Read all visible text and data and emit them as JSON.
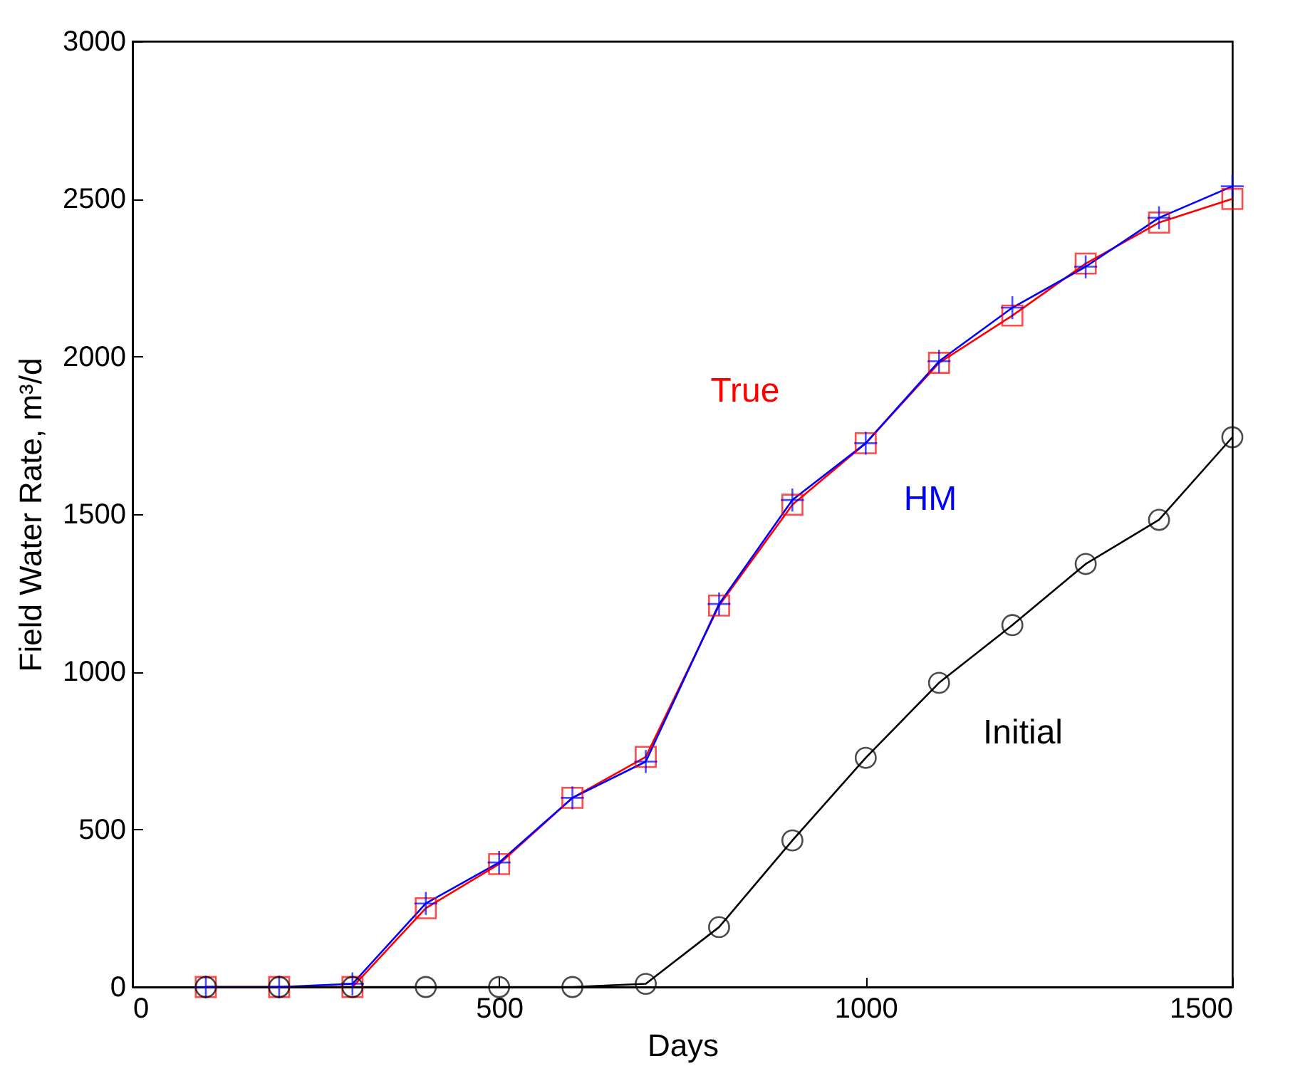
{
  "chart_data": {
    "type": "line",
    "xlabel": "Days",
    "ylabel": "Field Water Rate, m³/d",
    "x": [
      100,
      200,
      300,
      400,
      500,
      600,
      700,
      800,
      900,
      1000,
      1100,
      1200,
      1300,
      1400,
      1500
    ],
    "xlim": [
      0,
      1500
    ],
    "xticks": [
      0,
      500,
      1000,
      1500
    ],
    "ylim": [
      0,
      3000
    ],
    "yticks": [
      0,
      500,
      1000,
      1500,
      2000,
      2500,
      3000
    ],
    "grid": false,
    "legend": false,
    "series": [
      {
        "name": "True",
        "color": "#ff0000",
        "marker": "square",
        "values": [
          0,
          0,
          0,
          250,
          390,
          600,
          730,
          1210,
          1530,
          1725,
          1980,
          2130,
          2295,
          2425,
          2500
        ]
      },
      {
        "name": "HM",
        "color": "#0000ff",
        "marker": "cross",
        "values": [
          0,
          0,
          10,
          265,
          395,
          600,
          715,
          1215,
          1545,
          1725,
          1985,
          2155,
          2285,
          2440,
          2540
        ]
      },
      {
        "name": "Initial",
        "color": "#000000",
        "marker": "circle",
        "values": [
          0,
          0,
          0,
          0,
          0,
          0,
          10,
          190,
          465,
          727,
          965,
          1148,
          1342,
          1482,
          1744
        ]
      }
    ]
  }
}
